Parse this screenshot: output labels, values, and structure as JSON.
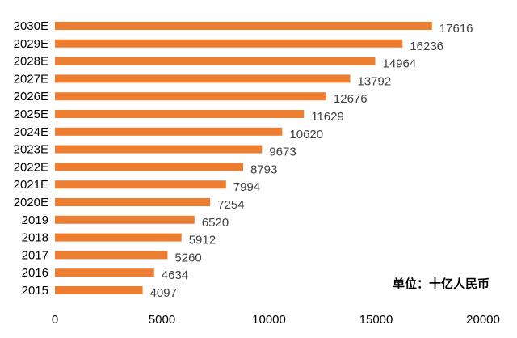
{
  "chart_data": {
    "type": "bar",
    "orientation": "horizontal",
    "categories": [
      "2015",
      "2016",
      "2017",
      "2018",
      "2019",
      "2020E",
      "2021E",
      "2022E",
      "2023E",
      "2024E",
      "2025E",
      "2026E",
      "2027E",
      "2028E",
      "2029E",
      "2030E"
    ],
    "values": [
      4097,
      4634,
      5260,
      5912,
      6520,
      7254,
      7994,
      8793,
      9673,
      10620,
      11629,
      12676,
      13792,
      14964,
      16236,
      17616
    ],
    "xlim": [
      0,
      20000
    ],
    "xticks": [
      0,
      5000,
      10000,
      15000,
      20000
    ],
    "unit_label": "单位：十亿人民币",
    "grid": false,
    "legend": "none",
    "bar_color": "#ED7D31"
  }
}
